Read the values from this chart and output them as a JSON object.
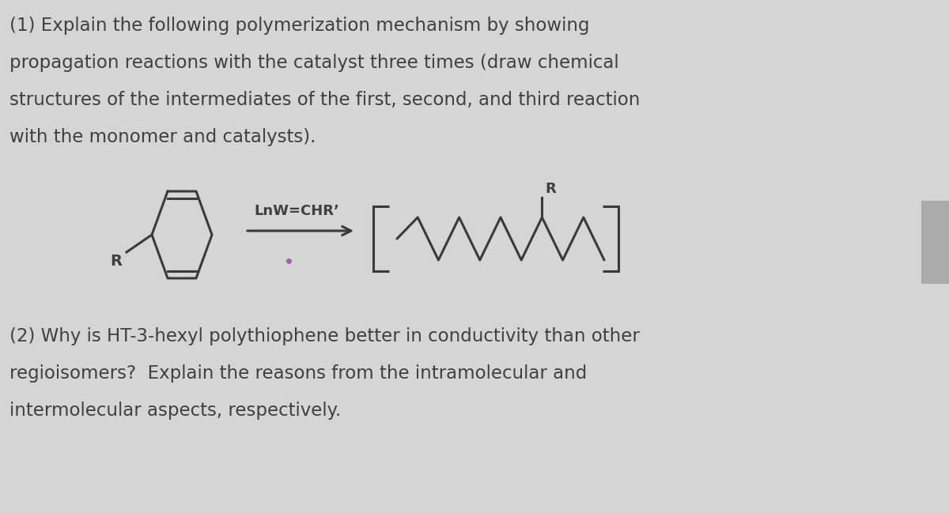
{
  "bg_color": "#d8d8d8",
  "bg_top_color": "#f0f0f0",
  "bg_bot_color": "#d0d0d0",
  "text_color": "#404040",
  "line_color": "#3a3a3a",
  "title_line1": "(1) Explain the following polymerization mechanism by showing",
  "title_line2": "propagation reactions with the catalyst three times (draw chemical",
  "title_line3": "structures of the intermediates of the first, second, and third reaction",
  "title_line4": "with the monomer and catalysts).",
  "q2_line1": "(2) Why is HT-3-hexyl polythiophene better in conductivity than other",
  "q2_line2": "regioisomers?  Explain the reasons from the intramolecular and",
  "q2_line3": "intermolecular aspects, respectively.",
  "catalyst_label": "LnW=CHR’",
  "R_label": "R",
  "figsize": [
    12.0,
    6.49
  ],
  "dpi": 100
}
